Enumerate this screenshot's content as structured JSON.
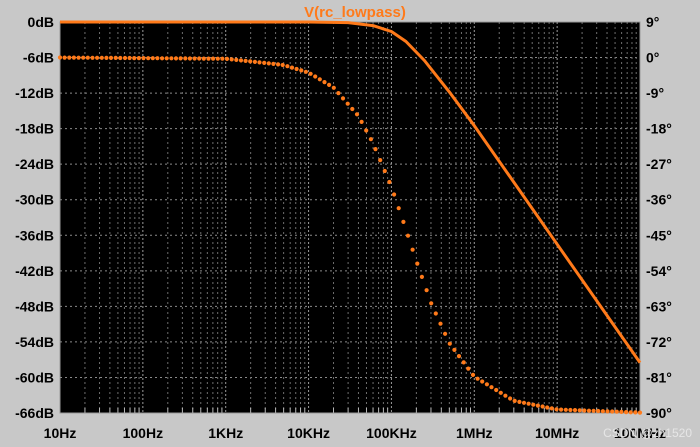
{
  "chart_data": {
    "type": "line",
    "title": "V(rc_lowpass)",
    "x_axis": {
      "scale": "log",
      "range_hz": [
        10,
        100000000
      ],
      "tick_values_hz": [
        10,
        100,
        1000,
        10000,
        100000,
        1000000,
        10000000,
        100000000
      ],
      "tick_labels": [
        "10Hz",
        "100Hz",
        "1KHz",
        "10KHz",
        "100KHz",
        "1MHz",
        "10MHz",
        "100MHz"
      ]
    },
    "y_left": {
      "range": [
        -66,
        0
      ],
      "tick_values": [
        0,
        -6,
        -12,
        -18,
        -24,
        -30,
        -36,
        -42,
        -48,
        -54,
        -60,
        -66
      ],
      "tick_labels": [
        "0dB",
        "-6dB",
        "-12dB",
        "-18dB",
        "-24dB",
        "-30dB",
        "-36dB",
        "-42dB",
        "-48dB",
        "-54dB",
        "-60dB",
        "-66dB"
      ]
    },
    "y_right": {
      "range": [
        -90,
        9
      ],
      "tick_values": [
        9,
        0,
        -9,
        -18,
        -27,
        -36,
        -45,
        -54,
        -63,
        -72,
        -81,
        -90
      ],
      "tick_labels": [
        "9°",
        "0°",
        "-9°",
        "-18°",
        "-27°",
        "-36°",
        "-45°",
        "-54°",
        "-63°",
        "-72°",
        "-81°",
        "-90°"
      ]
    },
    "grid": true,
    "series": [
      {
        "kind": "magnitude",
        "axis": "left",
        "style": "solid",
        "color": "#ff7a1a",
        "points": [
          [
            10,
            0
          ],
          [
            10000,
            0
          ],
          [
            30000,
            -0.1
          ],
          [
            60000,
            -0.6
          ],
          [
            100000,
            -1.6
          ],
          [
            150000,
            -3.3
          ],
          [
            250000,
            -6.5
          ],
          [
            500000,
            -11.8
          ],
          [
            1000000,
            -17.5
          ],
          [
            10000000,
            -37.5
          ],
          [
            100000000,
            -57.5
          ]
        ]
      },
      {
        "kind": "phase",
        "axis": "right",
        "style": "dotted",
        "color": "#ff7a1a",
        "points": [
          [
            10,
            0
          ],
          [
            1000,
            -0.3
          ],
          [
            5000,
            -1.9
          ],
          [
            10000,
            -3.8
          ],
          [
            20000,
            -7.6
          ],
          [
            40000,
            -14.8
          ],
          [
            60000,
            -21.7
          ],
          [
            80000,
            -27.9
          ],
          [
            100000,
            -32.7
          ],
          [
            150000,
            -43.6
          ],
          [
            200000,
            -51.5
          ],
          [
            300000,
            -62.1
          ],
          [
            500000,
            -72.3
          ],
          [
            1000000,
            -80.8
          ],
          [
            3000000,
            -86.9
          ],
          [
            10000000,
            -89.1
          ],
          [
            100000000,
            -89.9
          ]
        ]
      }
    ]
  },
  "watermark": "CSDN @zh1520"
}
